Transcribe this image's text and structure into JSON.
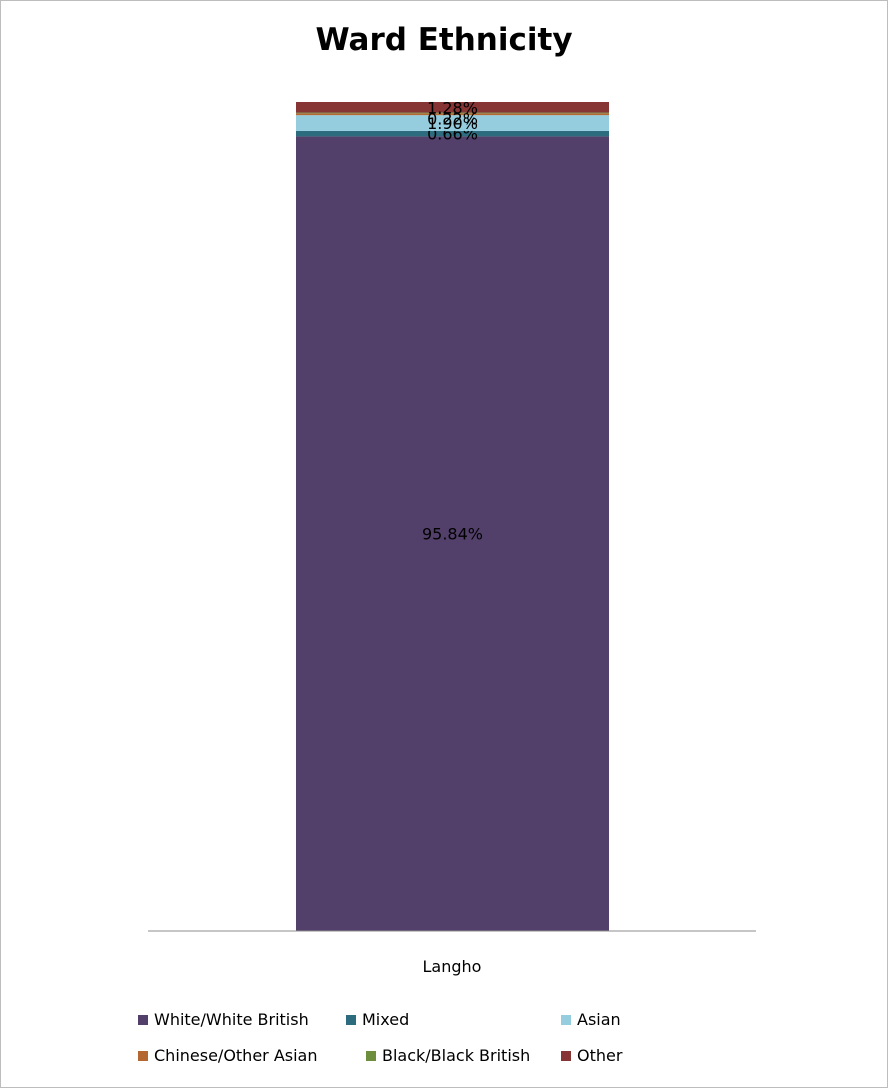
{
  "chart_data": {
    "type": "bar",
    "stacked": true,
    "percent_stacked": true,
    "title": "Ward Ethnicity",
    "categories": [
      "Langho"
    ],
    "series": [
      {
        "name": "White/White British",
        "values": [
          95.84
        ],
        "label": "95.84%",
        "color": "#523F6A"
      },
      {
        "name": "Mixed",
        "values": [
          0.66
        ],
        "label": "0.66%",
        "color": "#2C6C7E"
      },
      {
        "name": "Asian",
        "values": [
          1.9
        ],
        "label": "1.90%",
        "color": "#95CDDE"
      },
      {
        "name": "Chinese/Other Asian",
        "values": [
          0.22
        ],
        "label": "0.22%",
        "color": "#B46731"
      },
      {
        "name": "Black/Black British",
        "values": [
          0.09
        ],
        "label": "0.09%",
        "color": "#6D8E3C"
      },
      {
        "name": "Other",
        "values": [
          1.28
        ],
        "label": "1.28%",
        "color": "#863434"
      }
    ],
    "legend_position": "bottom",
    "grid": false
  }
}
